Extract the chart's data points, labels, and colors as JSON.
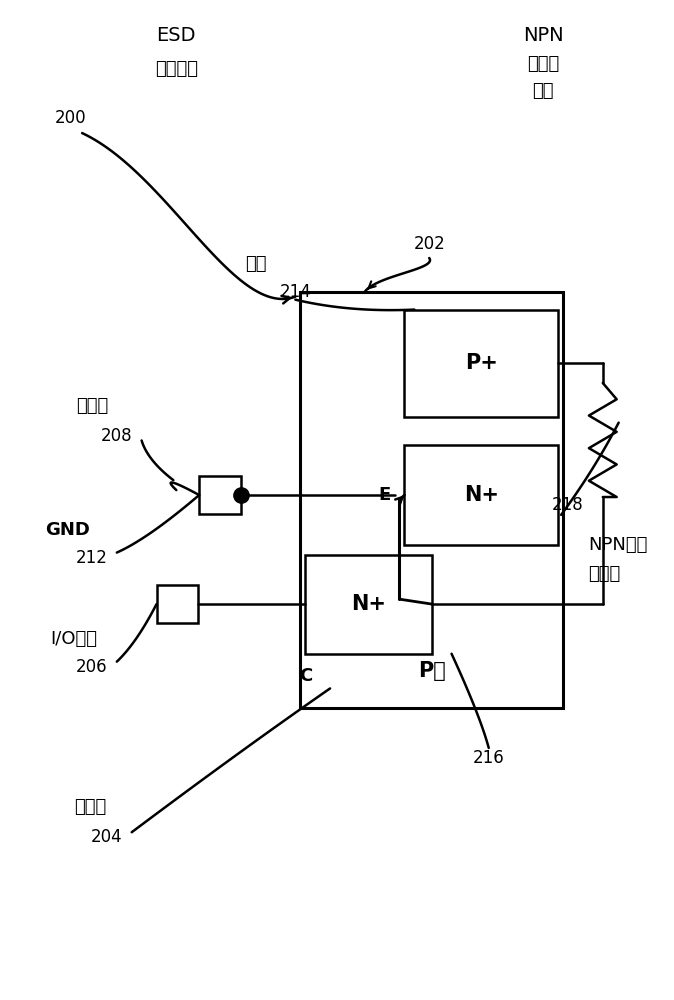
{
  "bg_color": "#ffffff",
  "fig_width": 6.74,
  "fig_height": 10.0,
  "dpi": 100,
  "label_200": "200",
  "label_esd": "ESD",
  "label_esd_line1": "钒位装置",
  "label_202": "202",
  "label_npn": "NPN",
  "label_npn_cn_line1": "半导体",
  "label_npn_cn_line2": "器件",
  "label_204": "204",
  "label_ji_line1": "集电极",
  "label_206": "206",
  "label_io_line1": "I/O焉块",
  "label_208": "208",
  "label_fs_line1": "发射极",
  "label_212": "212",
  "label_gnd": "GND",
  "label_214": "214",
  "label_base_line1": "基极",
  "label_216": "216",
  "label_218": "218",
  "label_npn_bjt_line1": "NPN双极",
  "label_npn_bjt_line2": "晶体管",
  "p_plus": "P+",
  "n_plus": "N+",
  "p_well": "P阱",
  "e_label": "E",
  "c_label": "C"
}
